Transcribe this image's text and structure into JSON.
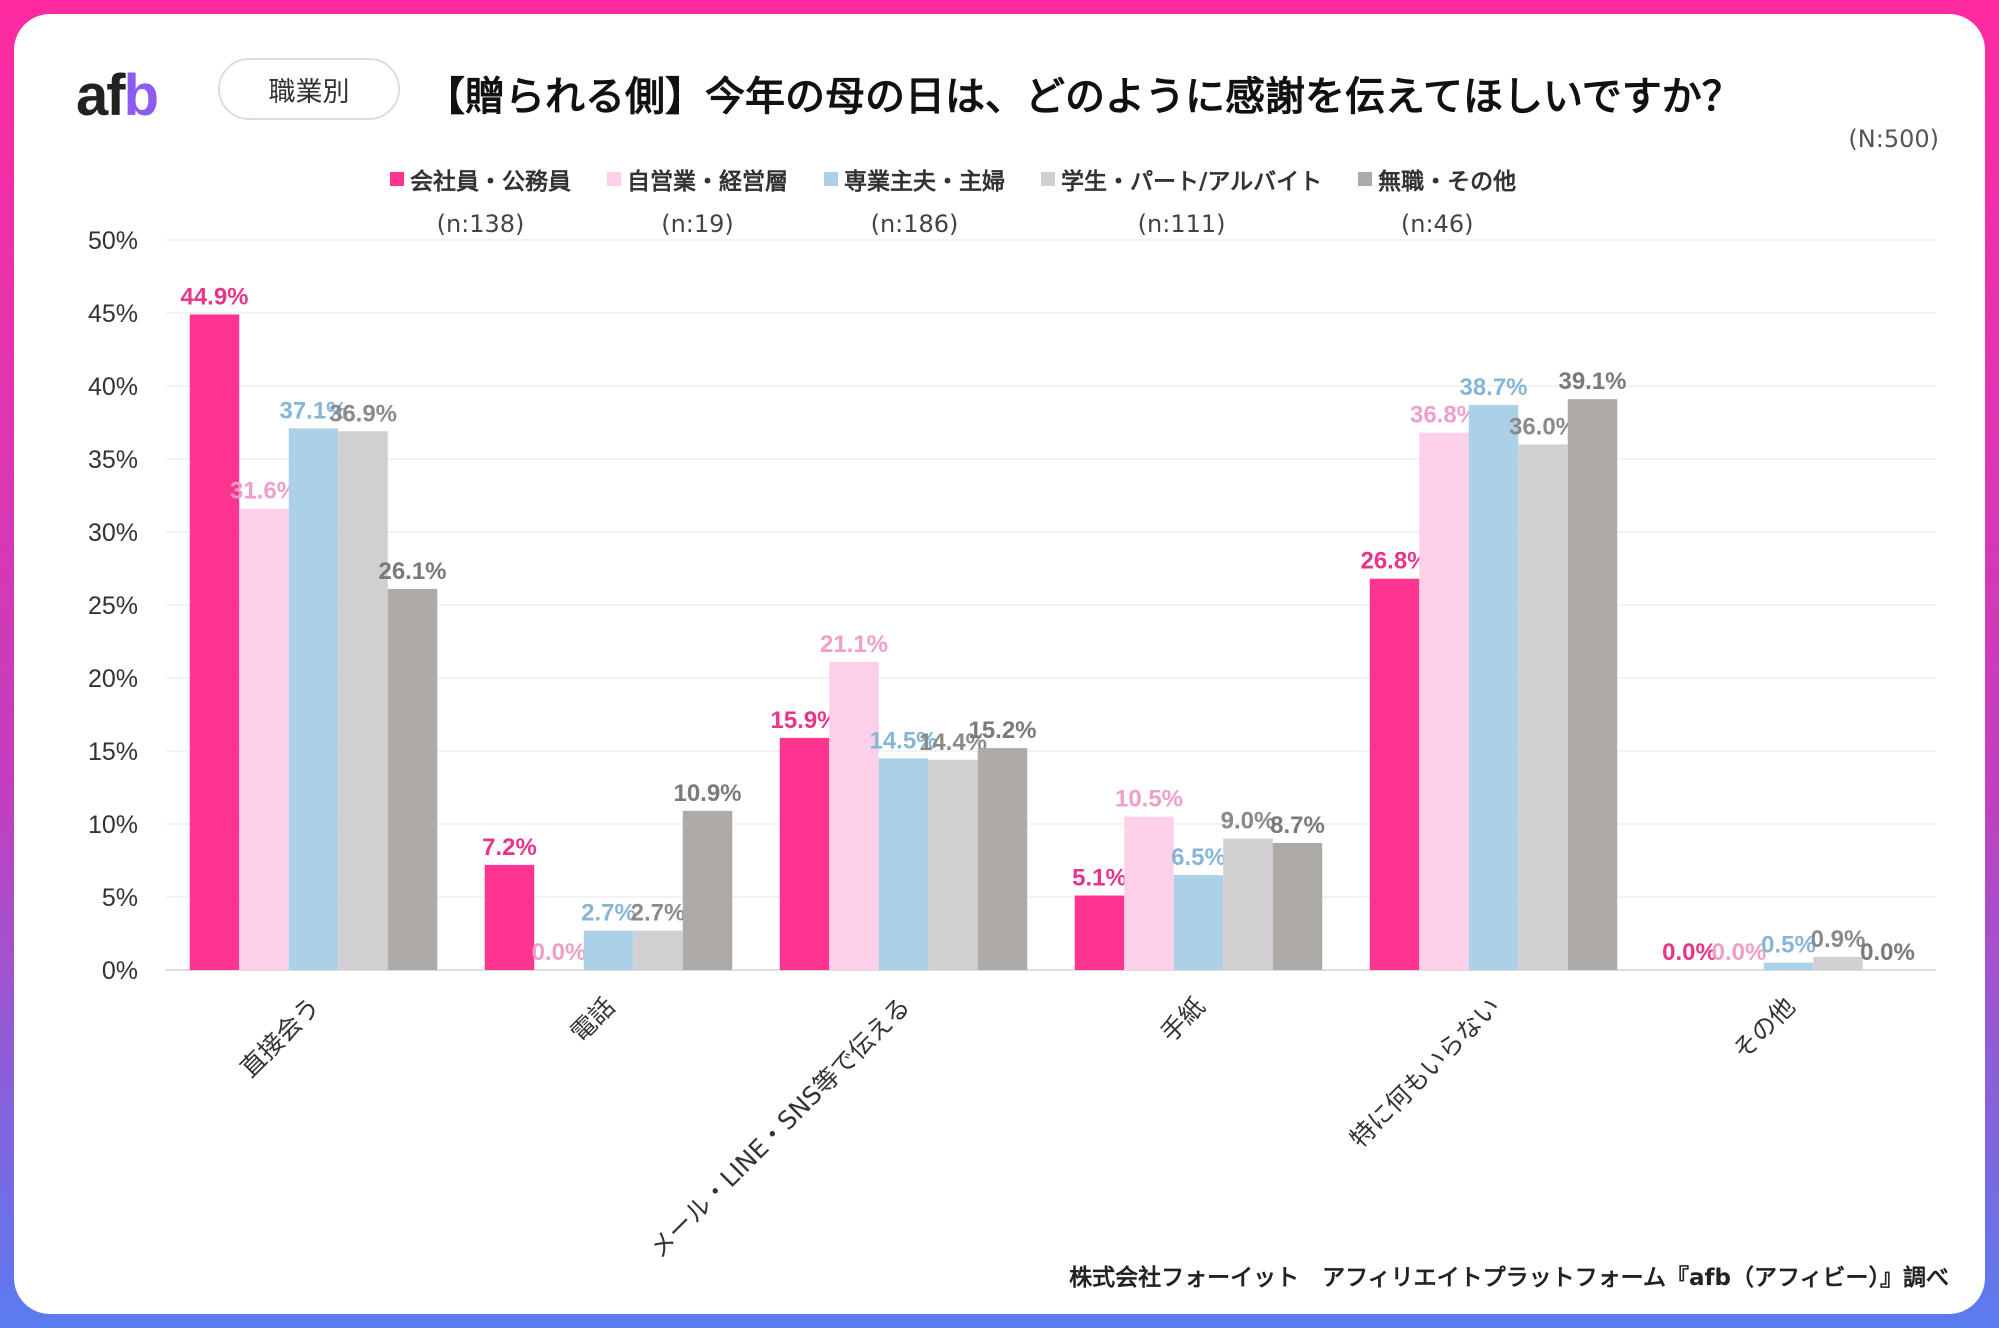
{
  "logo": "afb",
  "filter_pill": "職業別",
  "title": "【贈られる側】今年の母の日は、どのように感謝を伝えてほしいですか？",
  "total": "(N:500)",
  "footer": "株式会社フォーイット　アフィリエイトプラットフォーム『afb（アフィビー）』調べ",
  "chart_data": {
    "type": "bar",
    "categories": [
      "直接会う",
      "電話",
      "メール・LINE・SNS等で伝える",
      "手紙",
      "特に何もいらない",
      "その他"
    ],
    "series": [
      {
        "name": "会社員・公務員",
        "n": "(n:138)",
        "color": "#ff3390",
        "label_color": "#e8348a",
        "values": [
          44.9,
          7.2,
          15.9,
          5.1,
          26.8,
          0.0
        ]
      },
      {
        "name": "自営業・経営層",
        "n": "(n:19)",
        "color": "#fdd0ea",
        "label_color": "#eea0c8",
        "values": [
          31.6,
          0.0,
          21.1,
          10.5,
          36.8,
          0.0
        ]
      },
      {
        "name": "専業主夫・主婦",
        "n": "(n:186)",
        "color": "#abd0e8",
        "label_color": "#86b6d6",
        "values": [
          37.1,
          2.7,
          14.5,
          6.5,
          38.7,
          0.5
        ]
      },
      {
        "name": "学生・パート/アルバイト",
        "n": "(n:111)",
        "color": "#d1cfd1",
        "label_color": "#8a8a8a",
        "values": [
          36.9,
          2.7,
          14.4,
          9.0,
          36.0,
          0.9
        ]
      },
      {
        "name": "無職・その他",
        "n": "(n:46)",
        "color": "#aeaaa8",
        "label_color": "#7a7a7a",
        "values": [
          26.1,
          10.9,
          15.2,
          8.7,
          39.1,
          0.0
        ]
      }
    ],
    "ylim": [
      0,
      50
    ],
    "yticks": [
      "0%",
      "5%",
      "10%",
      "15%",
      "20%",
      "25%",
      "30%",
      "35%",
      "40%",
      "45%",
      "50%"
    ],
    "grid": true,
    "legend": "top"
  }
}
